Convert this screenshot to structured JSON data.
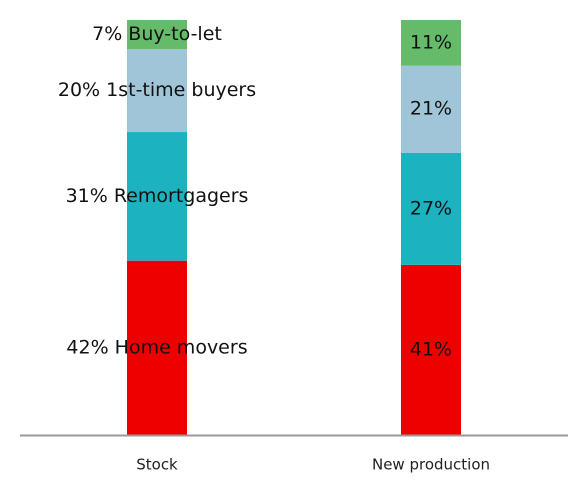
{
  "chart_data": {
    "type": "bar",
    "stacked": true,
    "normalized_percent": true,
    "categories": [
      "Stock",
      "New production"
    ],
    "series": [
      {
        "name": "Home movers",
        "color": "#ee0000",
        "values": [
          42,
          41
        ]
      },
      {
        "name": "Remortgagers",
        "color": "#1cb2bf",
        "values": [
          31,
          27
        ]
      },
      {
        "name": "1st-time buyers",
        "color": "#a0c5d8",
        "values": [
          20,
          21
        ]
      },
      {
        "name": "Buy-to-let",
        "color": "#66bb6a",
        "values": [
          7,
          11
        ]
      }
    ],
    "segment_labels": [
      [
        "42% Home movers",
        "31% Remortgagers",
        "20% 1st-time buyers",
        "7% Buy-to-let"
      ],
      [
        "41%",
        "27%",
        "21%",
        "11%"
      ]
    ],
    "ylim": [
      0,
      100
    ],
    "grid": false,
    "legend": "none",
    "axis_color": "#999999"
  }
}
